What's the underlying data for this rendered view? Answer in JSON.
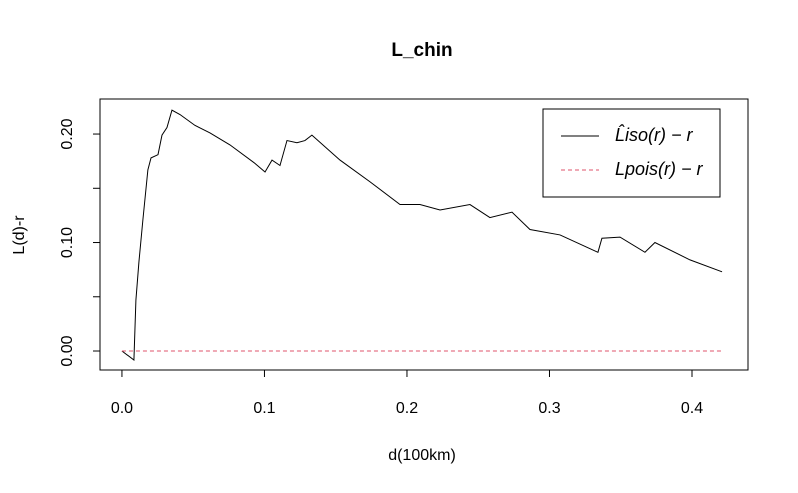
{
  "chart_data": {
    "type": "line",
    "title": "L_chin",
    "x_label": "d(100km)",
    "y_label": "L(d)-r",
    "xlim": [
      -0.0154,
      0.4393
    ],
    "ylim": [
      -0.0175,
      0.2323
    ],
    "xticks": [
      {
        "value": 0,
        "label": "0.0"
      },
      {
        "value": 0.1,
        "label": "0.1"
      },
      {
        "value": 0.2,
        "label": "0.2"
      },
      {
        "value": 0.3,
        "label": "0.3"
      },
      {
        "value": 0.4,
        "label": "0.4"
      }
    ],
    "yticks": [
      {
        "value": 0,
        "label": "0.00"
      },
      {
        "value": 0.05,
        "label": null
      },
      {
        "value": 0.1,
        "label": "0.10"
      },
      {
        "value": 0.15,
        "label": null
      },
      {
        "value": 0.2,
        "label": "0.20"
      }
    ],
    "legend_position": "topright",
    "series": [
      {
        "name": "L̂iso(r) − r",
        "color": "#000000",
        "dash": false,
        "x": [
          0,
          0.0084,
          0.0098,
          0.0119,
          0.0147,
          0.0182,
          0.0204,
          0.0253,
          0.0281,
          0.0316,
          0.0351,
          0.0407,
          0.0512,
          0.0618,
          0.0758,
          0.0933,
          0.1004,
          0.1053,
          0.1109,
          0.1158,
          0.1228,
          0.1284,
          0.1333,
          0.153,
          0.174,
          0.1951,
          0.2091,
          0.2232,
          0.2442,
          0.2582,
          0.2737,
          0.2863,
          0.3074,
          0.334,
          0.3368,
          0.3495,
          0.367,
          0.374,
          0.3986,
          0.4211
        ],
        "values": [
          0,
          -0.0083,
          0.047,
          0.082,
          0.121,
          0.167,
          0.178,
          0.181,
          0.199,
          0.206,
          0.222,
          0.218,
          0.208,
          0.201,
          0.19,
          0.173,
          0.165,
          0.176,
          0.171,
          0.194,
          0.192,
          0.194,
          0.199,
          0.176,
          0.156,
          0.135,
          0.135,
          0.13,
          0.135,
          0.123,
          0.128,
          0.112,
          0.107,
          0.091,
          0.104,
          0.105,
          0.091,
          0.1,
          0.084,
          0.073
        ]
      },
      {
        "name": "Lpois(r) − r",
        "color": "#DF536B",
        "dash": true,
        "x": [
          0,
          0.4211
        ],
        "values": [
          0,
          0
        ]
      }
    ]
  }
}
